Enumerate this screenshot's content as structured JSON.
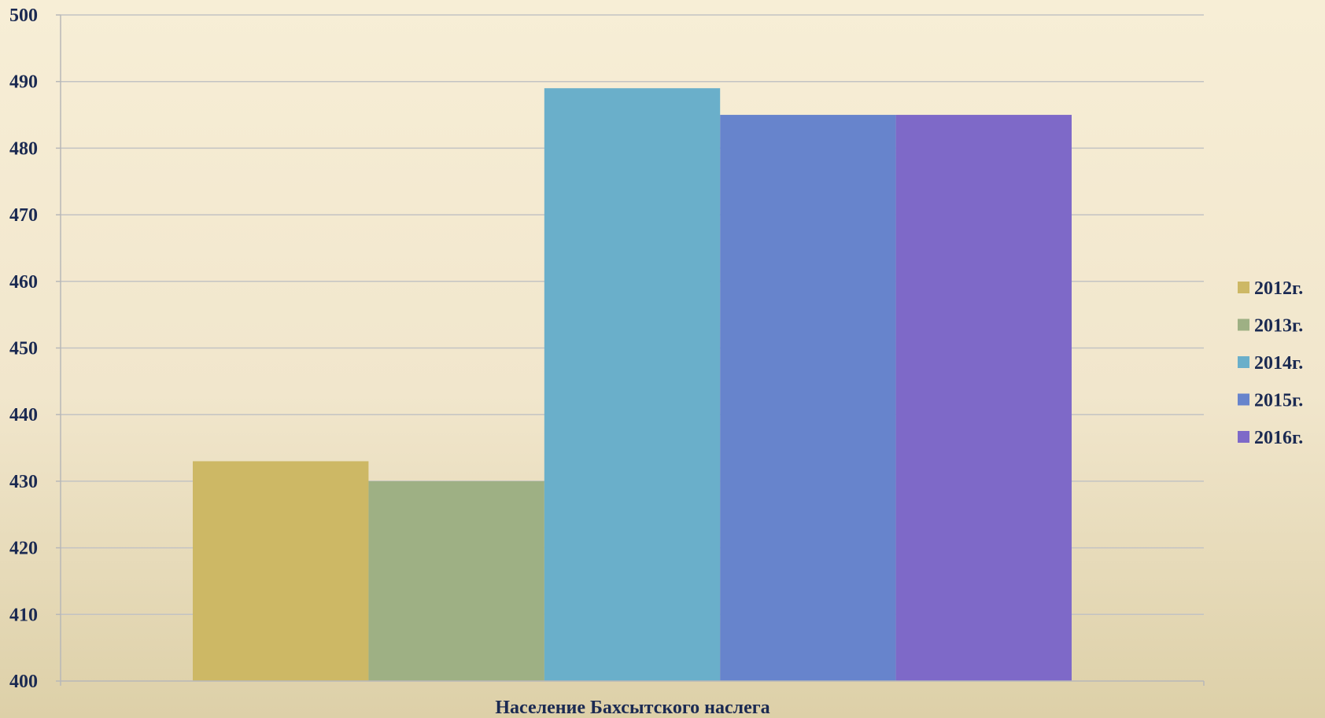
{
  "chart_data": {
    "type": "bar",
    "categories": [
      "Население Бахсытского наслега"
    ],
    "series": [
      {
        "name": "2012г.",
        "values": [
          433
        ],
        "color": "#cdb865"
      },
      {
        "name": "2013г.",
        "values": [
          430
        ],
        "color": "#9eb084"
      },
      {
        "name": "2014г.",
        "values": [
          489
        ],
        "color": "#6aafca"
      },
      {
        "name": "2015г.",
        "values": [
          485
        ],
        "color": "#6784cc"
      },
      {
        "name": "2016г.",
        "values": [
          485
        ],
        "color": "#7e69c8"
      }
    ],
    "ylim": [
      400,
      500
    ],
    "yticks": [
      400,
      410,
      420,
      430,
      440,
      450,
      460,
      470,
      480,
      490,
      500
    ],
    "grid": true,
    "legend": "right"
  }
}
